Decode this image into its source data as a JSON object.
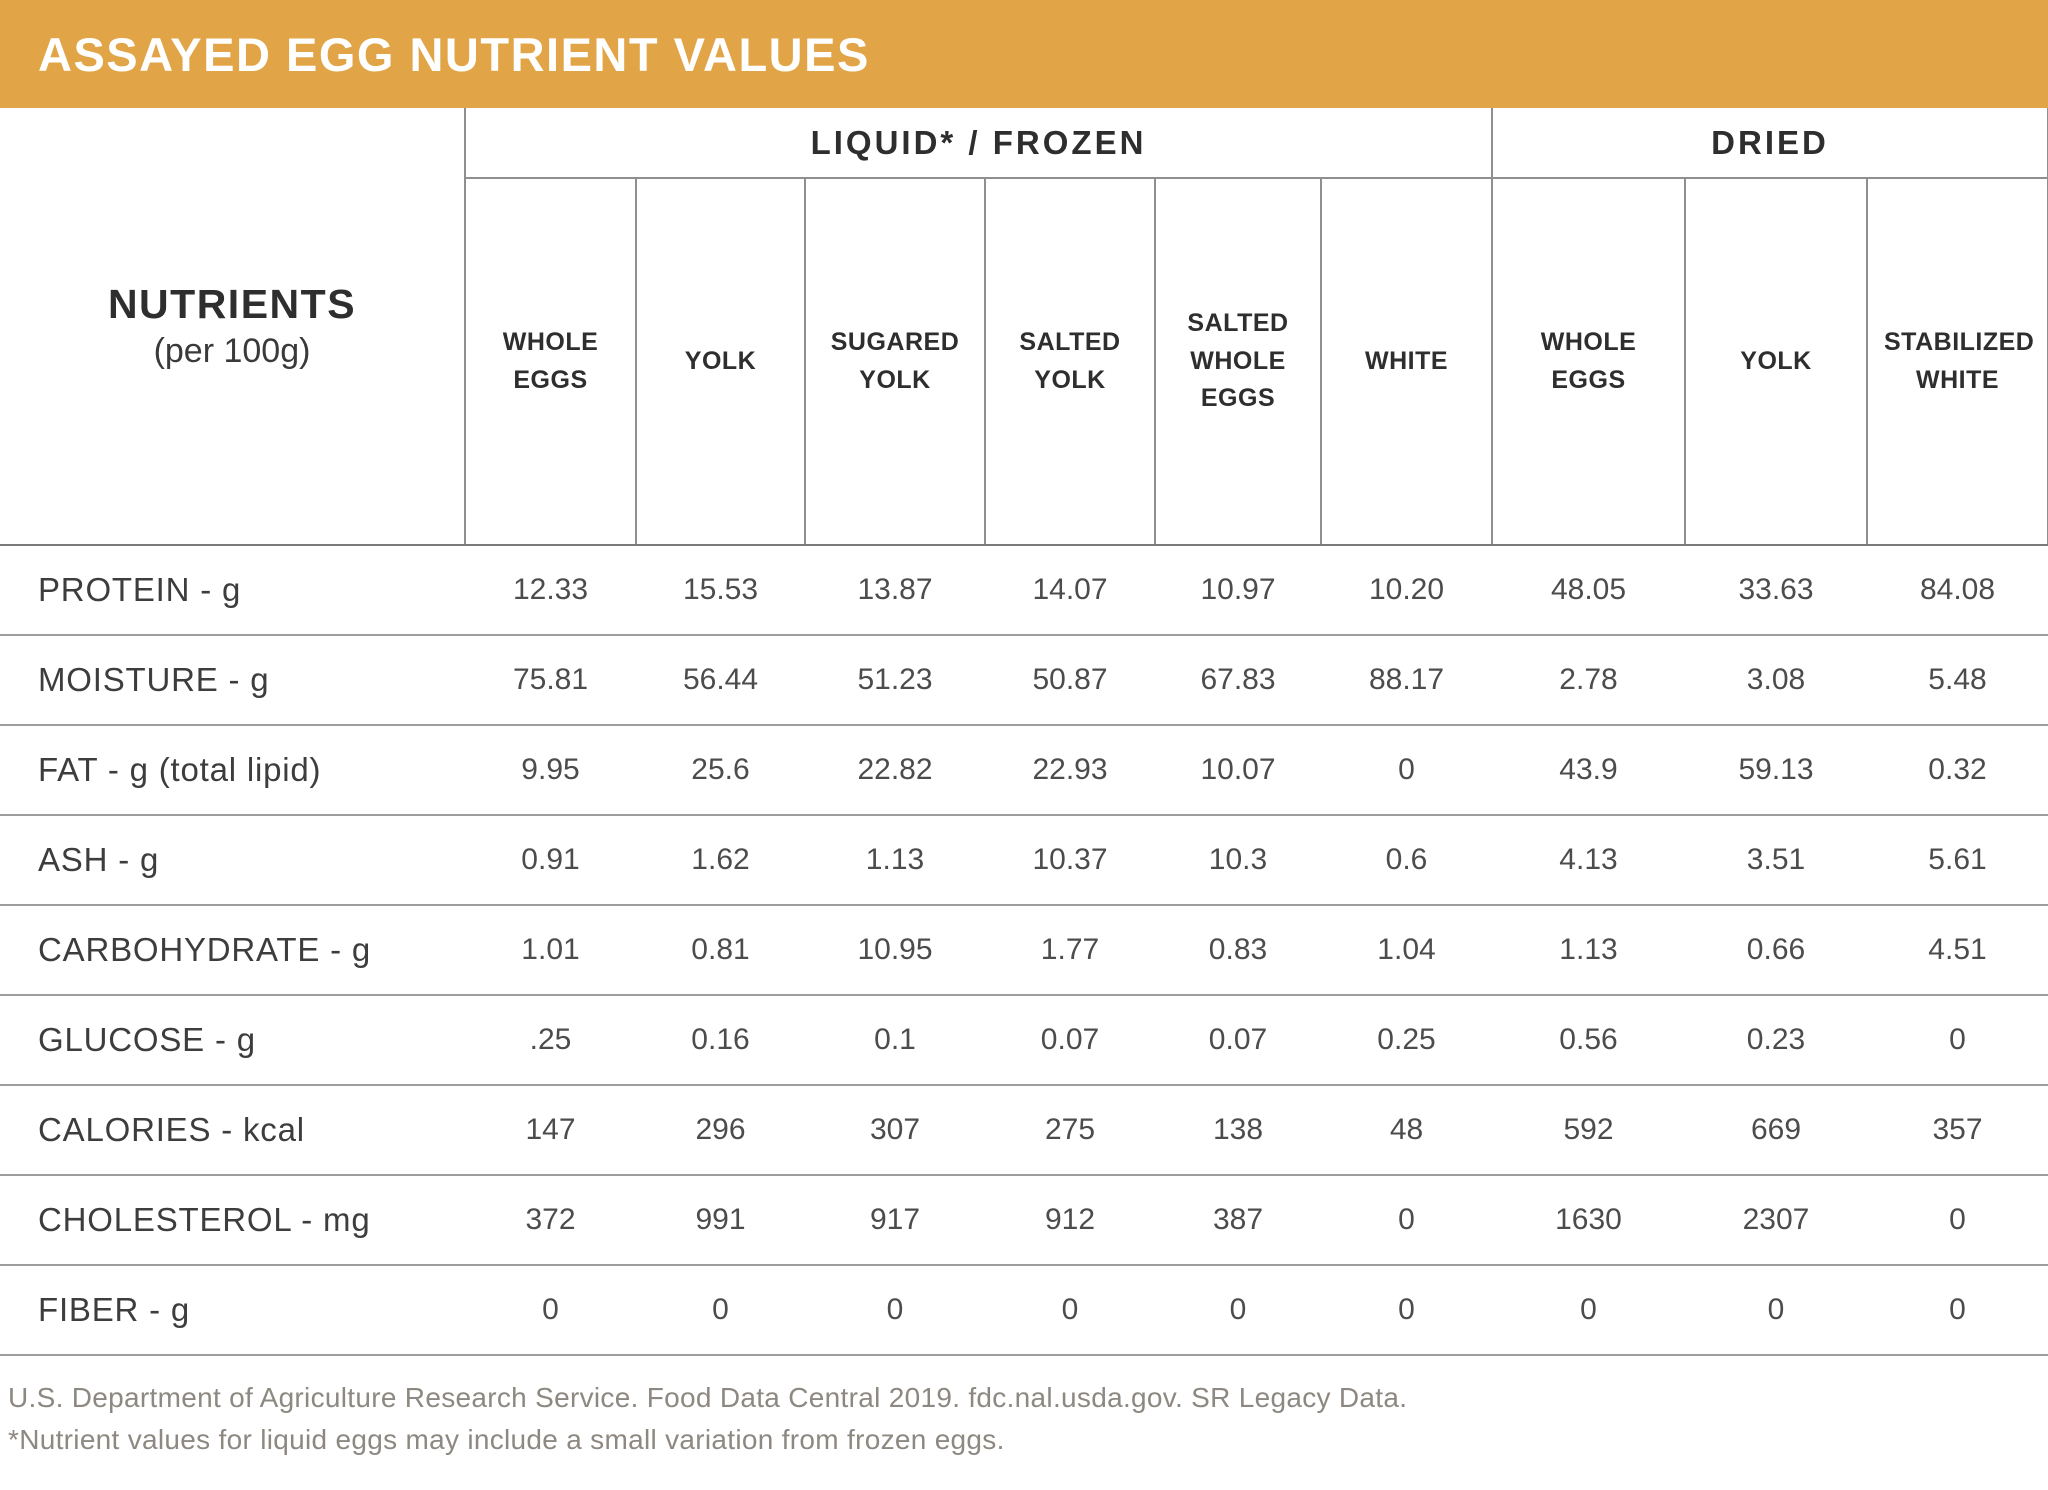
{
  "colors": {
    "accent": "#E1A547",
    "title_text": "#FFFFFF",
    "header_text": "#2E2E2E",
    "body_text": "#4C4C4C",
    "footer_text": "#8D8881"
  },
  "title_bar": {
    "title": "ASSAYED EGG NUTRIENT VALUES"
  },
  "chart_data": {
    "type": "table",
    "title": "ASSAYED EGG NUTRIENT VALUES",
    "corner_header": {
      "title": "NUTRIENTS",
      "subtitle": "(per 100g)"
    },
    "column_groups": [
      {
        "label": "LIQUID* / FROZEN",
        "span": 6
      },
      {
        "label": "DRIED",
        "span": 3
      }
    ],
    "columns": [
      "WHOLE EGGS",
      "YOLK",
      "SUGARED YOLK",
      "SALTED YOLK",
      "SALTED WHOLE EGGS",
      "WHITE",
      "WHOLE EGGS",
      "YOLK",
      "STABILIZED WHITE"
    ],
    "rows": [
      {
        "label": "PROTEIN - g",
        "values": [
          "12.33",
          "15.53",
          "13.87",
          "14.07",
          "10.97",
          "10.20",
          "48.05",
          "33.63",
          "84.08"
        ]
      },
      {
        "label": "MOISTURE - g",
        "values": [
          "75.81",
          "56.44",
          "51.23",
          "50.87",
          "67.83",
          "88.17",
          "2.78",
          "3.08",
          "5.48"
        ]
      },
      {
        "label": "FAT - g  (total lipid)",
        "values": [
          "9.95",
          "25.6",
          "22.82",
          "22.93",
          "10.07",
          "0",
          "43.9",
          "59.13",
          "0.32"
        ]
      },
      {
        "label": "ASH - g",
        "values": [
          "0.91",
          "1.62",
          "1.13",
          "10.37",
          "10.3",
          "0.6",
          "4.13",
          "3.51",
          "5.61"
        ]
      },
      {
        "label": "CARBOHYDRATE - g",
        "values": [
          "1.01",
          "0.81",
          "10.95",
          "1.77",
          "0.83",
          "1.04",
          "1.13",
          "0.66",
          "4.51"
        ]
      },
      {
        "label": "GLUCOSE - g",
        "values": [
          ".25",
          "0.16",
          "0.1",
          "0.07",
          "0.07",
          "0.25",
          "0.56",
          "0.23",
          "0"
        ]
      },
      {
        "label": "CALORIES - kcal",
        "values": [
          "147",
          "296",
          "307",
          "275",
          "138",
          "48",
          "592",
          "669",
          "357"
        ]
      },
      {
        "label": "CHOLESTEROL - mg",
        "values": [
          "372",
          "991",
          "917",
          "912",
          "387",
          "0",
          "1630",
          "2307",
          "0"
        ]
      },
      {
        "label": "FIBER - g",
        "values": [
          "0",
          "0",
          "0",
          "0",
          "0",
          "0",
          "0",
          "0",
          "0"
        ]
      }
    ]
  },
  "footer": {
    "source_line": "U.S. Department of Agriculture Research Service. Food Data Central 2019. fdc.nal.usda.gov. SR Legacy Data.",
    "note_line": "*Nutrient values for liquid eggs may include a small variation from frozen eggs."
  }
}
